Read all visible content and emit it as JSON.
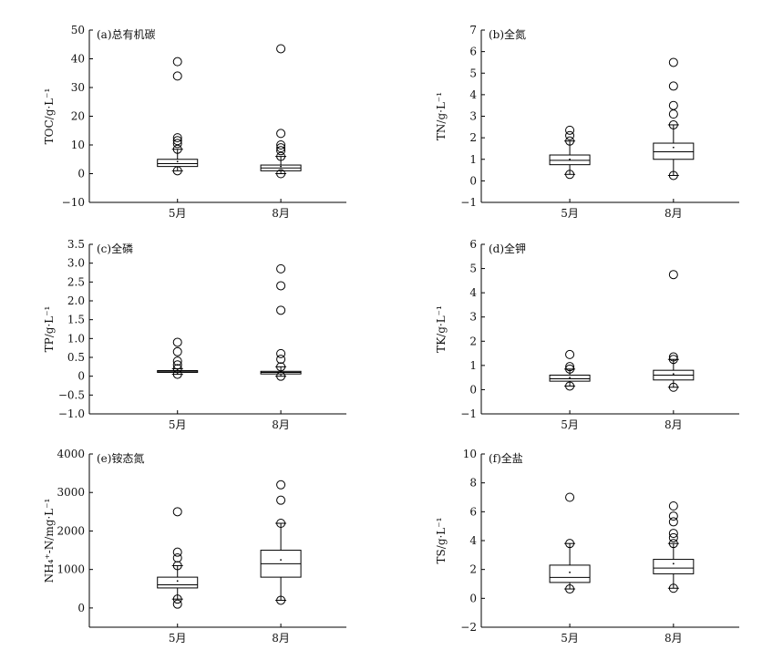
{
  "chart_data": [
    {
      "type": "box",
      "panel_label": "(a)总有机碳",
      "ylabel": "TOC/g·L⁻¹",
      "categories": [
        "5月",
        "8月"
      ],
      "ylim": [
        -10,
        50
      ],
      "yticks": [
        -10,
        0,
        10,
        20,
        30,
        40,
        50
      ],
      "boxes": [
        {
          "category": "5月",
          "q1": 2.5,
          "median": 3.5,
          "q3": 5.0,
          "mean": 4.2,
          "whisker_low": 1.0,
          "whisker_high": 8.5,
          "outliers": [
            10.5,
            11.5,
            12.5,
            34.0,
            39.0
          ]
        },
        {
          "category": "8月",
          "q1": 1.0,
          "median": 2.0,
          "q3": 3.0,
          "mean": 2.5,
          "whisker_low": 0.0,
          "whisker_high": 6.0,
          "outliers": [
            8.0,
            9.0,
            10.0,
            14.0,
            43.5
          ]
        }
      ]
    },
    {
      "type": "box",
      "panel_label": "(b)全氮",
      "ylabel": "TN/g·L⁻¹",
      "categories": [
        "5月",
        "8月"
      ],
      "ylim": [
        -1,
        7
      ],
      "yticks": [
        -1,
        0,
        1,
        2,
        3,
        4,
        5,
        6,
        7
      ],
      "boxes": [
        {
          "category": "5月",
          "q1": 0.75,
          "median": 0.95,
          "q3": 1.2,
          "mean": 1.0,
          "whisker_low": 0.3,
          "whisker_high": 1.85,
          "outliers": [
            2.1,
            2.35
          ]
        },
        {
          "category": "8月",
          "q1": 1.0,
          "median": 1.35,
          "q3": 1.75,
          "mean": 1.55,
          "whisker_low": 0.25,
          "whisker_high": 2.6,
          "outliers": [
            3.1,
            3.5,
            4.4,
            5.5
          ]
        }
      ]
    },
    {
      "type": "box",
      "panel_label": "(c)全磷",
      "ylabel": "TP/g·L⁻¹",
      "categories": [
        "5月",
        "8月"
      ],
      "ylim": [
        -1.0,
        3.5
      ],
      "yticks": [
        -1.0,
        -0.5,
        0,
        0.5,
        1.0,
        1.5,
        2.0,
        2.5,
        3.0,
        3.5
      ],
      "boxes": [
        {
          "category": "5月",
          "q1": 0.1,
          "median": 0.13,
          "q3": 0.15,
          "mean": 0.14,
          "whisker_low": 0.05,
          "whisker_high": 0.2,
          "outliers": [
            0.3,
            0.4,
            0.65,
            0.9
          ]
        },
        {
          "category": "8月",
          "q1": 0.06,
          "median": 0.1,
          "q3": 0.13,
          "mean": 0.12,
          "whisker_low": 0.0,
          "whisker_high": 0.25,
          "outliers": [
            0.45,
            0.6,
            1.75,
            2.4,
            2.85
          ]
        }
      ]
    },
    {
      "type": "box",
      "panel_label": "(d)全钾",
      "ylabel": "TK/g·L⁻¹",
      "categories": [
        "5月",
        "8月"
      ],
      "ylim": [
        -1,
        6
      ],
      "yticks": [
        -1,
        0,
        1,
        2,
        3,
        4,
        5,
        6
      ],
      "boxes": [
        {
          "category": "5月",
          "q1": 0.35,
          "median": 0.45,
          "q3": 0.6,
          "mean": 0.5,
          "whisker_low": 0.15,
          "whisker_high": 0.85,
          "outliers": [
            0.95,
            1.45
          ]
        },
        {
          "category": "8月",
          "q1": 0.4,
          "median": 0.6,
          "q3": 0.8,
          "mean": 0.65,
          "whisker_low": 0.1,
          "whisker_high": 1.25,
          "outliers": [
            1.35,
            4.75
          ]
        }
      ]
    },
    {
      "type": "box",
      "panel_label": "(e)铵态氮",
      "ylabel": "NH₄⁺-N/mg·L⁻¹",
      "categories": [
        "5月",
        "8月"
      ],
      "ylim": [
        -500,
        4000
      ],
      "yticks": [
        0,
        1000,
        2000,
        3000,
        4000
      ],
      "boxes": [
        {
          "category": "5月",
          "q1": 520,
          "median": 600,
          "q3": 800,
          "mean": 700,
          "whisker_low": 230,
          "whisker_high": 1100,
          "outliers": [
            100,
            1300,
            1450,
            2500
          ]
        },
        {
          "category": "8月",
          "q1": 800,
          "median": 1150,
          "q3": 1500,
          "mean": 1250,
          "whisker_low": 200,
          "whisker_high": 2200,
          "outliers": [
            2800,
            3200
          ]
        }
      ]
    },
    {
      "type": "box",
      "panel_label": "(f)全盐",
      "ylabel": "TS/g·L⁻¹",
      "categories": [
        "5月",
        "8月"
      ],
      "ylim": [
        -2,
        10
      ],
      "yticks": [
        -2,
        0,
        2,
        4,
        6,
        8,
        10
      ],
      "boxes": [
        {
          "category": "5月",
          "q1": 1.1,
          "median": 1.45,
          "q3": 2.3,
          "mean": 1.8,
          "whisker_low": 0.65,
          "whisker_high": 3.8,
          "outliers": [
            7.0
          ]
        },
        {
          "category": "8月",
          "q1": 1.7,
          "median": 2.1,
          "q3": 2.7,
          "mean": 2.4,
          "whisker_low": 0.7,
          "whisker_high": 3.8,
          "outliers": [
            4.2,
            4.5,
            5.3,
            5.7,
            6.4
          ]
        }
      ]
    }
  ]
}
